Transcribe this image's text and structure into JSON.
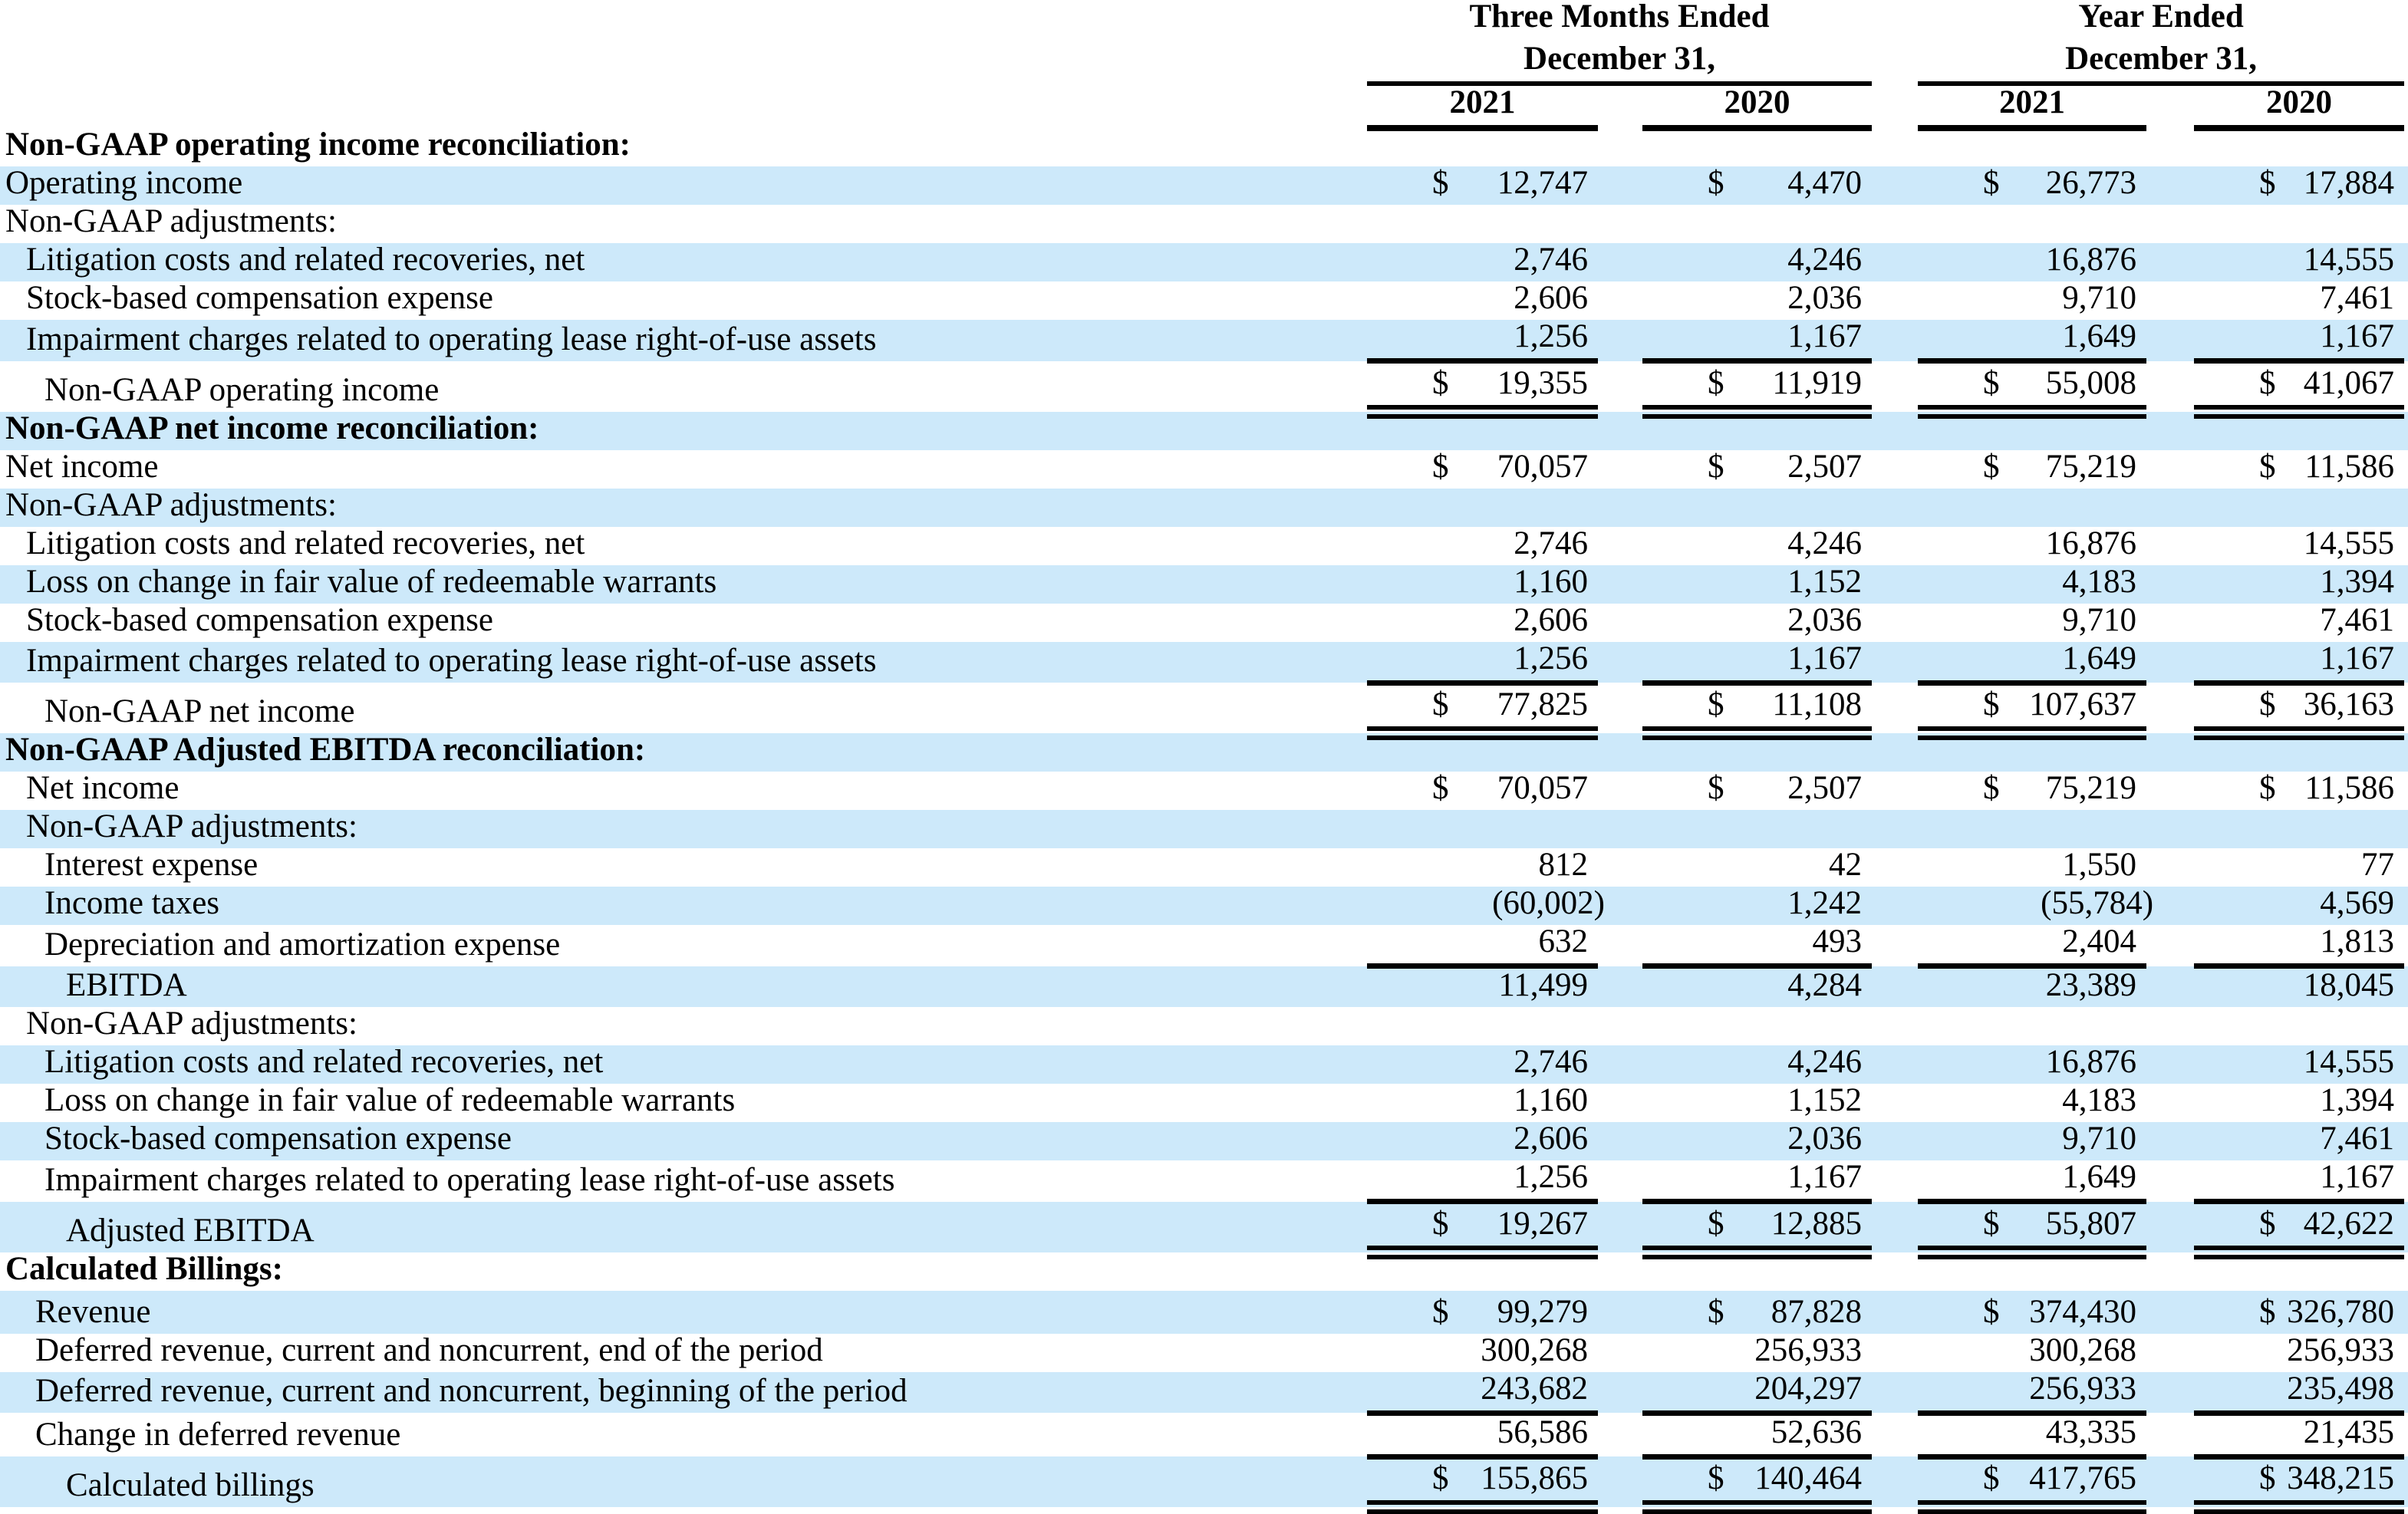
{
  "table": {
    "currency_symbol": "$",
    "units_note": "",
    "header": {
      "group1": {
        "line1": "Three Months Ended",
        "line2": "December 31,",
        "years": [
          "2021",
          "2020"
        ]
      },
      "group2": {
        "line1": "Year Ended",
        "line2": "December 31,",
        "years": [
          "2021",
          "2020"
        ]
      }
    },
    "rows": [
      {
        "label": "Non-GAAP operating income reconciliation:",
        "bold": true,
        "indent": 0,
        "dollar": false,
        "values": null
      },
      {
        "label": "Operating income",
        "bold": false,
        "indent": 0,
        "dollar": true,
        "values": [
          "12,747",
          "4,470",
          "26,773",
          "17,884"
        ]
      },
      {
        "label": "Non-GAAP adjustments:",
        "bold": false,
        "indent": 0,
        "dollar": false,
        "values": null
      },
      {
        "label": "Litigation costs and related recoveries, net",
        "bold": false,
        "indent": 1,
        "dollar": false,
        "values": [
          "2,746",
          "4,246",
          "16,876",
          "14,555"
        ]
      },
      {
        "label": "Stock-based compensation expense",
        "bold": false,
        "indent": 1,
        "dollar": false,
        "values": [
          "2,606",
          "2,036",
          "9,710",
          "7,461"
        ]
      },
      {
        "label": "Impairment charges related to operating lease right-of-use assets",
        "bold": false,
        "indent": 1,
        "dollar": false,
        "values": [
          "1,256",
          "1,167",
          "1,649",
          "1,167"
        ]
      },
      {
        "label": "Non-GAAP operating income",
        "bold": false,
        "indent": 2,
        "dollar": true,
        "values": [
          "19,355",
          "11,919",
          "55,008",
          "41,067"
        ],
        "rule_top": true,
        "double_bottom": true,
        "total": true
      },
      {
        "label": "Non-GAAP net income reconciliation:",
        "bold": true,
        "indent": 0,
        "dollar": false,
        "values": null
      },
      {
        "label": "Net income",
        "bold": false,
        "indent": 0,
        "dollar": true,
        "values": [
          "70,057",
          "2,507",
          "75,219",
          "11,586"
        ]
      },
      {
        "label": "Non-GAAP adjustments:",
        "bold": false,
        "indent": 0,
        "dollar": false,
        "values": null
      },
      {
        "label": "Litigation costs and related recoveries, net",
        "bold": false,
        "indent": 1,
        "dollar": false,
        "values": [
          "2,746",
          "4,246",
          "16,876",
          "14,555"
        ]
      },
      {
        "label": "Loss on change in fair value of redeemable warrants",
        "bold": false,
        "indent": 1,
        "dollar": false,
        "values": [
          "1,160",
          "1,152",
          "4,183",
          "1,394"
        ]
      },
      {
        "label": "Stock-based compensation expense",
        "bold": false,
        "indent": 1,
        "dollar": false,
        "values": [
          "2,606",
          "2,036",
          "9,710",
          "7,461"
        ]
      },
      {
        "label": "Impairment charges related to operating lease right-of-use assets",
        "bold": false,
        "indent": 1,
        "dollar": false,
        "values": [
          "1,256",
          "1,167",
          "1,649",
          "1,167"
        ]
      },
      {
        "label": "Non-GAAP net income",
        "bold": false,
        "indent": 2,
        "dollar": true,
        "values": [
          "77,825",
          "11,108",
          "107,637",
          "36,163"
        ],
        "rule_top": true,
        "double_bottom": true,
        "total": true
      },
      {
        "label": "Non-GAAP Adjusted EBITDA reconciliation:",
        "bold": true,
        "indent": 0,
        "dollar": false,
        "values": null
      },
      {
        "label": "Net income",
        "bold": false,
        "indent": 1,
        "dollar": true,
        "values": [
          "70,057",
          "2,507",
          "75,219",
          "11,586"
        ]
      },
      {
        "label": "Non-GAAP adjustments:",
        "bold": false,
        "indent": 1,
        "dollar": false,
        "values": null
      },
      {
        "label": "Interest expense",
        "bold": false,
        "indent": 2,
        "dollar": false,
        "values": [
          "812",
          "42",
          "1,550",
          "77"
        ]
      },
      {
        "label": "Income taxes",
        "bold": false,
        "indent": 2,
        "dollar": false,
        "values": [
          "(60,002)",
          "1,242",
          "(55,784)",
          "4,569"
        ]
      },
      {
        "label": "Depreciation and amortization expense",
        "bold": false,
        "indent": 2,
        "dollar": false,
        "values": [
          "632",
          "493",
          "2,404",
          "1,813"
        ]
      },
      {
        "label": "EBITDA",
        "bold": false,
        "indent": 3,
        "dollar": false,
        "values": [
          "11,499",
          "4,284",
          "23,389",
          "18,045"
        ],
        "rule_top": true
      },
      {
        "label": "Non-GAAP adjustments:",
        "bold": false,
        "indent": 1,
        "dollar": false,
        "values": null
      },
      {
        "label": "Litigation costs and related recoveries, net",
        "bold": false,
        "indent": 2,
        "dollar": false,
        "values": [
          "2,746",
          "4,246",
          "16,876",
          "14,555"
        ]
      },
      {
        "label": "Loss on change in fair value of redeemable warrants",
        "bold": false,
        "indent": 2,
        "dollar": false,
        "values": [
          "1,160",
          "1,152",
          "4,183",
          "1,394"
        ]
      },
      {
        "label": "Stock-based compensation expense",
        "bold": false,
        "indent": 2,
        "dollar": false,
        "values": [
          "2,606",
          "2,036",
          "9,710",
          "7,461"
        ]
      },
      {
        "label": "Impairment charges related to operating lease right-of-use assets",
        "bold": false,
        "indent": 2,
        "dollar": false,
        "values": [
          "1,256",
          "1,167",
          "1,649",
          "1,167"
        ]
      },
      {
        "label": "Adjusted EBITDA",
        "bold": false,
        "indent": 3,
        "dollar": true,
        "values": [
          "19,267",
          "12,885",
          "55,807",
          "42,622"
        ],
        "rule_top": true,
        "double_bottom": true,
        "total": true
      },
      {
        "label": "Calculated Billings:",
        "bold": true,
        "indent": 0,
        "dollar": false,
        "values": null
      },
      {
        "label": "Revenue",
        "bold": false,
        "indent": 4,
        "dollar": true,
        "values": [
          "99,279",
          "87,828",
          "374,430",
          "326,780"
        ],
        "tall": true
      },
      {
        "label": "Deferred revenue, current and noncurrent, end of the period",
        "bold": false,
        "indent": 4,
        "dollar": false,
        "values": [
          "300,268",
          "256,933",
          "300,268",
          "256,933"
        ]
      },
      {
        "label": "Deferred revenue, current and noncurrent, beginning of the period",
        "bold": false,
        "indent": 4,
        "dollar": false,
        "values": [
          "243,682",
          "204,297",
          "256,933",
          "235,498"
        ]
      },
      {
        "label": "Change in deferred revenue",
        "bold": false,
        "indent": 4,
        "dollar": false,
        "values": [
          "56,586",
          "52,636",
          "43,335",
          "21,435"
        ],
        "rule_top": true
      },
      {
        "label": "Calculated billings",
        "bold": false,
        "indent": 3,
        "dollar": true,
        "values": [
          "155,865",
          "140,464",
          "417,765",
          "348,215"
        ],
        "rule_top": true,
        "double_bottom": true,
        "total": true
      }
    ]
  }
}
